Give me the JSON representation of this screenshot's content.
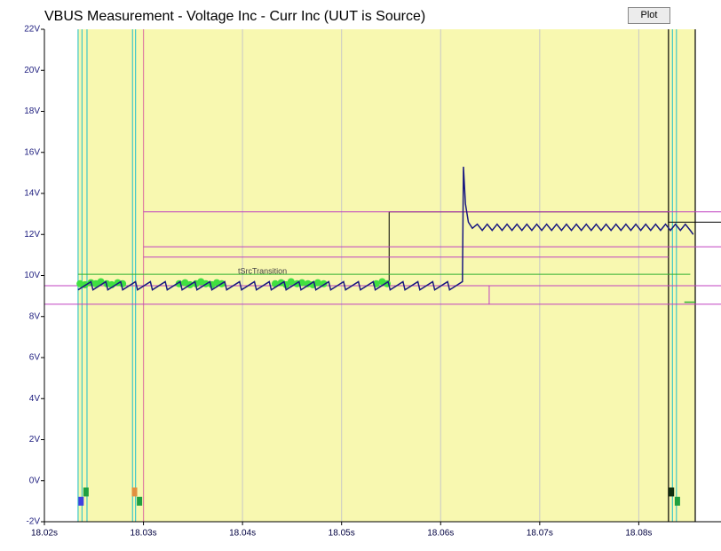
{
  "controls": {
    "plot_button": "Plot"
  },
  "chart_data": {
    "type": "line",
    "title": "VBUS Measurement - Voltage Inc - Curr Inc (UUT is Source)",
    "annotation": "tSrcTransition",
    "xlim": [
      18.02,
      18.0883
    ],
    "ylim": [
      -2,
      22
    ],
    "xticks": [
      {
        "value": 18.02,
        "label": "18.02s"
      },
      {
        "value": 18.03,
        "label": "18.03s"
      },
      {
        "value": 18.04,
        "label": "18.04s"
      },
      {
        "value": 18.05,
        "label": "18.05s"
      },
      {
        "value": 18.06,
        "label": "18.06s"
      },
      {
        "value": 18.07,
        "label": "18.07s"
      },
      {
        "value": 18.08,
        "label": "18.08s"
      }
    ],
    "yticks": [
      {
        "value": -2,
        "label": "-2V"
      },
      {
        "value": 0,
        "label": "0V"
      },
      {
        "value": 2,
        "label": "2V"
      },
      {
        "value": 4,
        "label": "4V"
      },
      {
        "value": 6,
        "label": "6V"
      },
      {
        "value": 8,
        "label": "8V"
      },
      {
        "value": 10,
        "label": "10V"
      },
      {
        "value": 12,
        "label": "12V"
      },
      {
        "value": 14,
        "label": "14V"
      },
      {
        "value": 16,
        "label": "16V"
      },
      {
        "value": 18,
        "label": "18V"
      },
      {
        "value": 20,
        "label": "20V"
      },
      {
        "value": 22,
        "label": "22V"
      }
    ],
    "grid": "x",
    "shade": {
      "x": [
        18.0234,
        18.0857
      ],
      "color": "#f8f8b0"
    },
    "series": [
      {
        "color": "#1a1a80",
        "width": 1.5,
        "x": [
          18.0234,
          18.0247,
          18.0249,
          18.0262,
          18.0264,
          18.0277,
          18.0279,
          18.0292,
          18.0294,
          18.0307,
          18.0309,
          18.0322,
          18.0324,
          18.0337,
          18.0339,
          18.0352,
          18.0354,
          18.0367,
          18.0369,
          18.0382,
          18.0384,
          18.0397,
          18.0399,
          18.0412,
          18.0414,
          18.0427,
          18.0429,
          18.0442,
          18.0444,
          18.0457,
          18.0459,
          18.0472,
          18.0474,
          18.0487,
          18.0489,
          18.0502,
          18.0504,
          18.0517,
          18.0519,
          18.0532,
          18.0534,
          18.0547,
          18.0549,
          18.0562,
          18.0564,
          18.0577,
          18.0579,
          18.0592,
          18.0594,
          18.0607,
          18.0609,
          18.0622,
          18.0623,
          18.0625,
          18.0628,
          18.0632,
          18.0637,
          18.0642,
          18.0647,
          18.0652,
          18.0657,
          18.0662,
          18.0667,
          18.0672,
          18.0677,
          18.0682,
          18.0687,
          18.0692,
          18.0697,
          18.0702,
          18.0707,
          18.0712,
          18.0717,
          18.0722,
          18.0727,
          18.0732,
          18.0737,
          18.0742,
          18.0747,
          18.0752,
          18.0757,
          18.0762,
          18.0767,
          18.0772,
          18.0777,
          18.0782,
          18.0787,
          18.0792,
          18.0797,
          18.0802,
          18.0807,
          18.0812,
          18.0817,
          18.0822,
          18.0827,
          18.0832,
          18.0837,
          18.0842,
          18.0847,
          18.0852,
          18.0855
        ],
        "values": [
          9.3,
          9.7,
          9.3,
          9.7,
          9.3,
          9.7,
          9.3,
          9.7,
          9.3,
          9.7,
          9.3,
          9.7,
          9.3,
          9.7,
          9.3,
          9.7,
          9.3,
          9.7,
          9.3,
          9.7,
          9.3,
          9.7,
          9.3,
          9.7,
          9.3,
          9.7,
          9.3,
          9.7,
          9.3,
          9.7,
          9.3,
          9.7,
          9.3,
          9.7,
          9.3,
          9.7,
          9.3,
          9.7,
          9.3,
          9.7,
          9.3,
          9.7,
          9.3,
          9.7,
          9.3,
          9.7,
          9.3,
          9.7,
          9.3,
          9.7,
          9.3,
          9.7,
          15.3,
          13.5,
          12.6,
          12.3,
          12.5,
          12.2,
          12.5,
          12.2,
          12.5,
          12.2,
          12.5,
          12.2,
          12.5,
          12.2,
          12.5,
          12.2,
          12.5,
          12.2,
          12.5,
          12.2,
          12.5,
          12.2,
          12.5,
          12.2,
          12.5,
          12.2,
          12.5,
          12.2,
          12.5,
          12.2,
          12.5,
          12.2,
          12.5,
          12.2,
          12.5,
          12.2,
          12.5,
          12.2,
          12.5,
          12.2,
          12.5,
          12.2,
          12.5,
          12.2,
          12.5,
          12.2,
          12.5,
          12.2,
          12.0
        ]
      },
      {
        "color": "#000000",
        "width": 1,
        "x": [
          18.0548,
          18.0548,
          18.083,
          18.083,
          18.0883
        ],
        "values": [
          9.46,
          13.1,
          13.1,
          12.6,
          12.6
        ]
      },
      {
        "color": "#c040c0",
        "width": 1,
        "x": [
          18.02,
          18.0883
        ],
        "values": [
          9.5,
          9.5
        ]
      },
      {
        "color": "#c040c0",
        "width": 1,
        "x": [
          18.0649,
          18.0649
        ],
        "values": [
          9.5,
          8.6
        ]
      },
      {
        "color": "#c040c0",
        "width": 1,
        "x": [
          18.02,
          18.0883
        ],
        "values": [
          8.6,
          8.6
        ]
      },
      {
        "color": "#c040c0",
        "width": 1,
        "x": [
          18.03,
          18.0883
        ],
        "values": [
          13.1,
          13.1
        ]
      },
      {
        "color": "#c040c0",
        "width": 1,
        "x": [
          18.03,
          18.0883
        ],
        "values": [
          11.4,
          11.4
        ]
      },
      {
        "color": "#c040c0",
        "width": 1,
        "x": [
          18.03,
          18.083
        ],
        "values": [
          10.9,
          10.9
        ]
      },
      {
        "color": "#30b030",
        "width": 1,
        "x": [
          18.0234,
          18.0852
        ],
        "values": [
          10.06,
          10.06
        ]
      },
      {
        "color": "#30b030",
        "width": 1.5,
        "x": [
          18.0846,
          18.0857
        ],
        "values": [
          8.7,
          8.7
        ]
      },
      {
        "color": "#40e040",
        "mode": "markers",
        "x": [
          18.0236,
          18.0241,
          18.0247,
          18.0252,
          18.0257,
          18.0263,
          18.0268,
          18.0274,
          18.0279,
          18.0336,
          18.0342,
          18.0347,
          18.0353,
          18.0358,
          18.0363,
          18.0369,
          18.0374,
          18.0379,
          18.0433,
          18.0439,
          18.0444,
          18.0449,
          18.0455,
          18.046,
          18.0466,
          18.0471,
          18.0476,
          18.0482,
          18.0535,
          18.0541,
          18.0546
        ],
        "values": [
          9.6,
          9.55,
          9.65,
          9.6,
          9.7,
          9.6,
          9.55,
          9.65,
          9.6,
          9.6,
          9.65,
          9.55,
          9.6,
          9.7,
          9.6,
          9.55,
          9.65,
          9.6,
          9.6,
          9.65,
          9.55,
          9.7,
          9.6,
          9.65,
          9.6,
          9.55,
          9.65,
          9.6,
          9.6,
          9.7,
          9.6
        ]
      }
    ],
    "vlines": [
      {
        "x": 18.0234,
        "color": "#40c8c8"
      },
      {
        "x": 18.0238,
        "color": "#40c8c8"
      },
      {
        "x": 18.0243,
        "color": "#40c8c8"
      },
      {
        "x": 18.0289,
        "color": "#40c8c8"
      },
      {
        "x": 18.0292,
        "color": "#40c8c8"
      },
      {
        "x": 18.03,
        "color": "#e080a0"
      },
      {
        "x": 18.083,
        "color": "#000000"
      },
      {
        "x": 18.0834,
        "color": "#40c8c8"
      },
      {
        "x": 18.0838,
        "color": "#40c8c8"
      },
      {
        "x": 18.0857,
        "color": "#000000"
      }
    ],
    "flags": [
      {
        "x": 18.0237,
        "value": -1.0,
        "color": "#4040e0"
      },
      {
        "x": 18.0242,
        "value": -0.55,
        "color": "#20a040"
      },
      {
        "x": 18.0291,
        "value": -0.55,
        "color": "#e09040"
      },
      {
        "x": 18.0296,
        "value": -1.0,
        "color": "#20a040"
      },
      {
        "x": 18.0833,
        "value": -0.55,
        "color": "#103010"
      },
      {
        "x": 18.0839,
        "value": -1.0,
        "color": "#20a040"
      }
    ]
  }
}
